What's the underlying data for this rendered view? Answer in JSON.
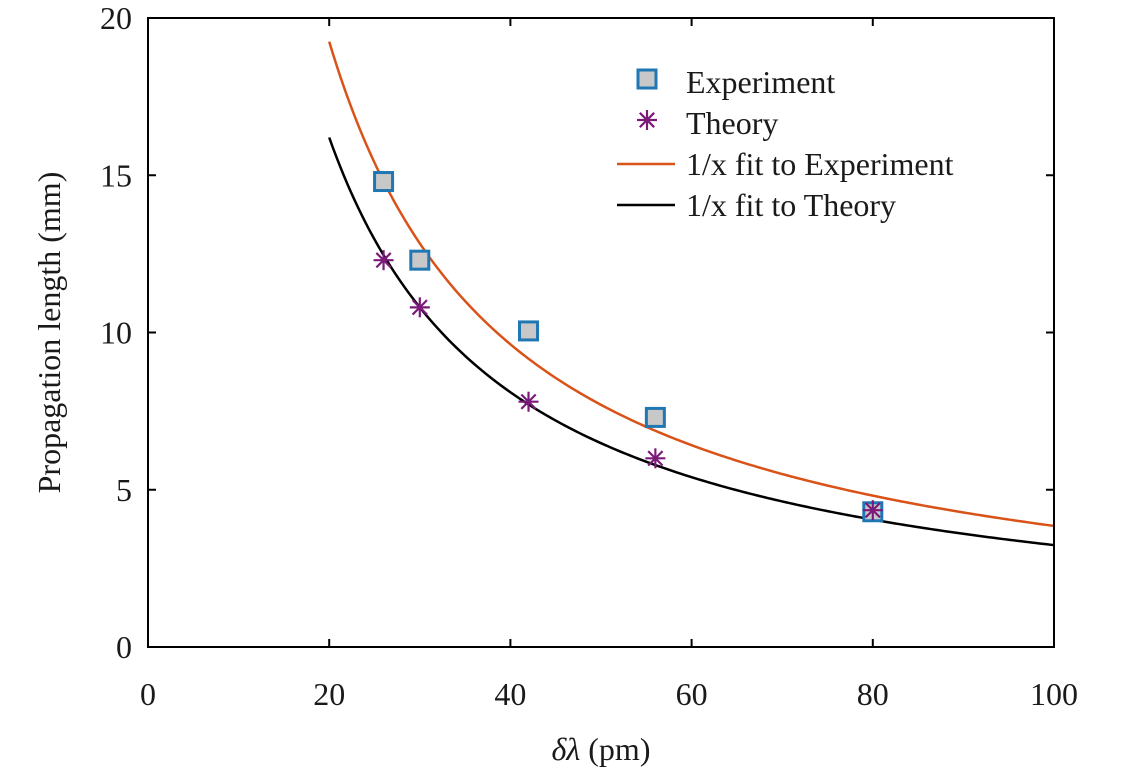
{
  "chart_data": {
    "type": "scatter",
    "title": "",
    "xlabel_symbol": "δλ",
    "xlabel_unit": " (pm)",
    "ylabel": "Propagation length (mm)",
    "xlim": [
      0,
      100
    ],
    "ylim": [
      0,
      20
    ],
    "xticks": [
      0,
      20,
      40,
      60,
      80,
      100
    ],
    "yticks": [
      0,
      5,
      10,
      15,
      20
    ],
    "grid": false,
    "legend_position": "top-right",
    "series": [
      {
        "name": "Experiment",
        "kind": "scatter",
        "marker": "square",
        "color": "#1f77b4",
        "fill": "#c8c8c8",
        "x": [
          26,
          30,
          42,
          56,
          80
        ],
        "y": [
          14.8,
          12.3,
          10.05,
          7.3,
          4.3
        ]
      },
      {
        "name": "Theory",
        "kind": "scatter",
        "marker": "asterisk",
        "color": "#7b1a7b",
        "x": [
          26,
          30,
          42,
          56,
          80
        ],
        "y": [
          12.3,
          10.8,
          7.8,
          6.0,
          4.35
        ]
      },
      {
        "name": "1/x fit to Experiment",
        "kind": "line",
        "color": "#d95319",
        "coef": 385,
        "x_range": [
          20,
          100
        ]
      },
      {
        "name": "1/x fit to Theory",
        "kind": "line",
        "color": "#000000",
        "coef": 324,
        "x_range": [
          20,
          100
        ]
      }
    ]
  }
}
